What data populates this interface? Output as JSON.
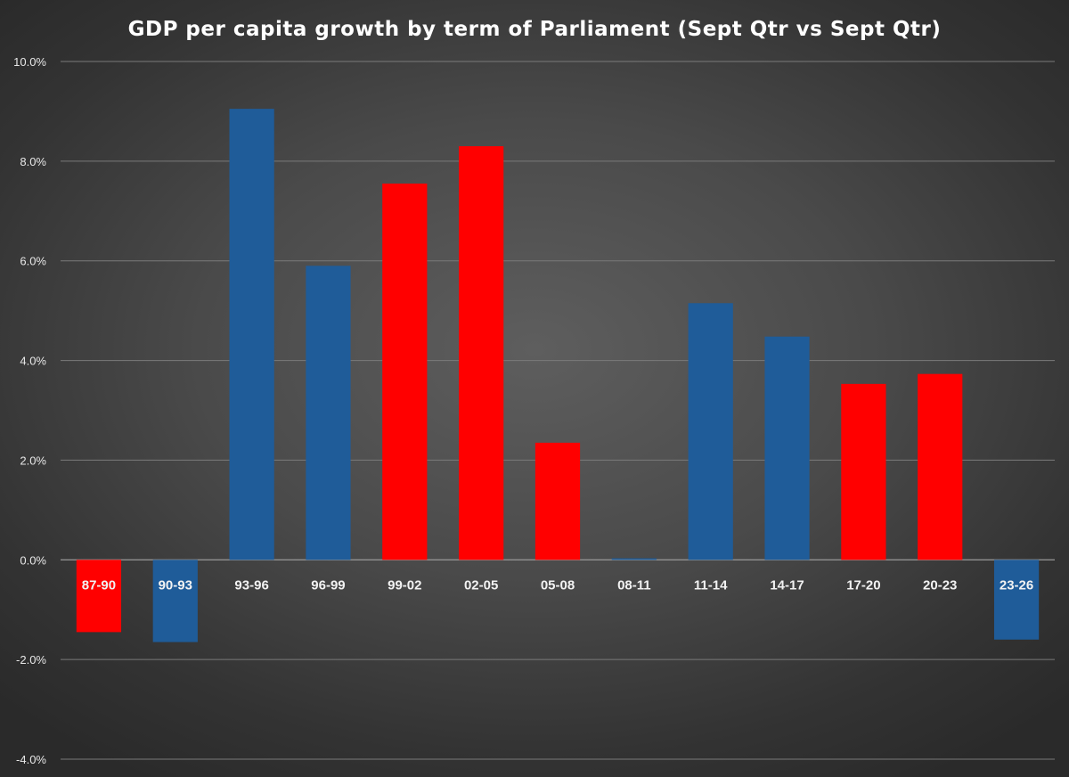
{
  "chart_data": {
    "type": "bar",
    "title": "GDP per capita growth by term of Parliament (Sept Qtr vs Sept Qtr)",
    "xlabel": "",
    "ylabel": "",
    "ylim": [
      -4.0,
      10.0
    ],
    "yticks": [
      "10.0%",
      "8.0%",
      "6.0%",
      "4.0%",
      "2.0%",
      "0.0%",
      "-2.0%",
      "-4.0%"
    ],
    "ytick_values": [
      10,
      8,
      6,
      4,
      2,
      0,
      -2,
      -4
    ],
    "grid": true,
    "categories": [
      "87-90",
      "90-93",
      "93-96",
      "96-99",
      "99-02",
      "02-05",
      "05-08",
      "08-11",
      "11-14",
      "14-17",
      "17-20",
      "20-23",
      "23-26"
    ],
    "values": [
      -1.45,
      -1.65,
      9.05,
      5.9,
      7.55,
      8.3,
      2.35,
      0.03,
      5.15,
      4.48,
      3.53,
      3.73,
      -1.6
    ],
    "colors": [
      "#ff0000",
      "#1f5c99",
      "#1f5c99",
      "#1f5c99",
      "#ff0000",
      "#ff0000",
      "#ff0000",
      "#1f5c99",
      "#1f5c99",
      "#1f5c99",
      "#ff0000",
      "#ff0000",
      "#1f5c99"
    ]
  }
}
